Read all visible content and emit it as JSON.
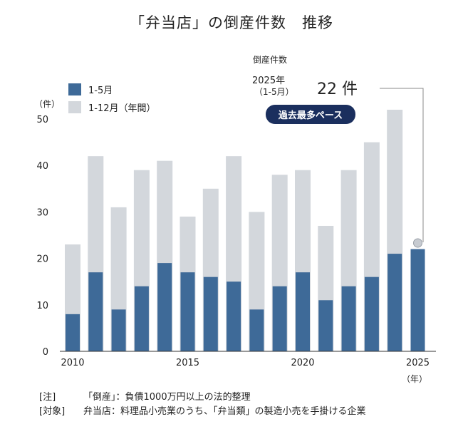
{
  "title": "「弁当店」の倒産件数　推移",
  "colors": {
    "jan_may": "#3e6a98",
    "annual": "#d3d7dc",
    "badge": "#1b2f5e",
    "dot": "#c7cbd1"
  },
  "y_unit": "（件）",
  "x_unit": "（年）",
  "legend": {
    "jan_may": "1-5月",
    "annual": "1-12月（年間）"
  },
  "callout": {
    "heading": "倒産件数",
    "year": "2025年",
    "period": "（1-5月）",
    "value": "22 件",
    "badge": "過去最多ペース"
  },
  "notes": [
    {
      "key": "[注]",
      "text": "「倒産」：負債1000万円以上の法的整理"
    },
    {
      "key": "[対象]",
      "text": "弁当店：料理品小売業のうち、「弁当類」の製造小売を手掛ける企業"
    }
  ],
  "chart_data": {
    "type": "bar",
    "categories": [
      "2010",
      "2011",
      "2012",
      "2013",
      "2014",
      "2015",
      "2016",
      "2017",
      "2018",
      "2019",
      "2020",
      "2021",
      "2022",
      "2023",
      "2024",
      "2025"
    ],
    "x_tick_labels": [
      "2010",
      "2015",
      "2020",
      "2025"
    ],
    "series": [
      {
        "name": "1-12月（年間）",
        "values": [
          23,
          42,
          31,
          39,
          41,
          29,
          35,
          42,
          30,
          38,
          39,
          27,
          39,
          45,
          52,
          null
        ]
      },
      {
        "name": "1-5月",
        "values": [
          8,
          17,
          9,
          14,
          19,
          17,
          16,
          15,
          9,
          14,
          17,
          11,
          14,
          16,
          21,
          22
        ]
      }
    ],
    "ylim": [
      0,
      50
    ],
    "yticks": [
      0,
      10,
      20,
      30,
      40,
      50
    ],
    "xlabel": "",
    "ylabel": "",
    "grid": false,
    "legend_position": "top-left"
  }
}
